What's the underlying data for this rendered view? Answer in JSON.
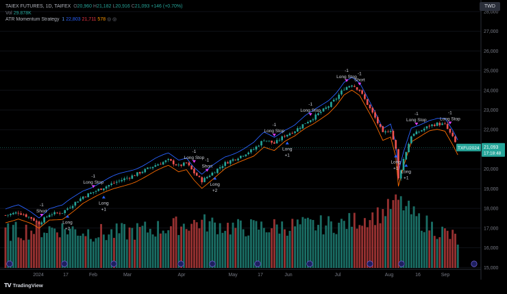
{
  "legend": {
    "symbol": "TAIEX FUTURES, 1D, TAIFEX",
    "open_label": "O",
    "open": "20,960",
    "high_label": "H",
    "high": "21,182",
    "low_label": "L",
    "low": "20,916",
    "close_label": "C",
    "close": "21,093",
    "change": "+146 (+0.70%)",
    "vol_label": "Vol",
    "vol": "29.878K",
    "indicator": "ATR Momentum Strategy",
    "ind_param": "1",
    "ind_upper": "22,803",
    "ind_lower": "21,711",
    "ind_count": "578",
    "icons": "◎ ◎"
  },
  "currency_button": "TWD",
  "price_tag": {
    "label": "TXFU2024",
    "price": "21,093",
    "countdown": "17:18:48"
  },
  "footer": {
    "brand": "TradingView"
  },
  "colors": {
    "up": "#26a69a",
    "down": "#ef5350",
    "upper_band": "#2962ff",
    "lower_band": "#ff6d00",
    "background": "#000000"
  },
  "chart_data": {
    "type": "candlestick",
    "y_axis_labels": [
      "28,000",
      "27,000",
      "26,000",
      "25,000",
      "24,000",
      "23,000",
      "22,000",
      "21,000",
      "20,000",
      "19,000",
      "18,000",
      "17,000",
      "16,000",
      "15,000"
    ],
    "y_axis_range": [
      14800,
      28100
    ],
    "x_axis_labels": [
      "2024",
      "17",
      "Feb",
      "Mar",
      "Apr",
      "May",
      "17",
      "Jun",
      "Jul",
      "Aug",
      "16",
      "Sep"
    ],
    "close_anchors": [
      [
        0,
        17650
      ],
      [
        5,
        17800
      ],
      [
        10,
        17500
      ],
      [
        13,
        17250
      ],
      [
        17,
        17700
      ],
      [
        22,
        17800
      ],
      [
        27,
        18300
      ],
      [
        30,
        18600
      ],
      [
        36,
        18950
      ],
      [
        42,
        19300
      ],
      [
        50,
        19700
      ],
      [
        58,
        20200
      ],
      [
        63,
        20450
      ],
      [
        67,
        20150
      ],
      [
        70,
        20300
      ],
      [
        73,
        19800
      ],
      [
        76,
        19400
      ],
      [
        80,
        19800
      ],
      [
        85,
        20300
      ],
      [
        90,
        20600
      ],
      [
        96,
        21000
      ],
      [
        100,
        21500
      ],
      [
        104,
        21300
      ],
      [
        108,
        21700
      ],
      [
        112,
        21950
      ],
      [
        116,
        22350
      ],
      [
        119,
        22600
      ],
      [
        121,
        22800
      ],
      [
        125,
        23200
      ],
      [
        128,
        23600
      ],
      [
        131,
        24100
      ],
      [
        134,
        24300
      ],
      [
        137,
        24000
      ],
      [
        140,
        23300
      ],
      [
        143,
        22600
      ],
      [
        146,
        21800
      ],
      [
        149,
        22000
      ],
      [
        151,
        21000
      ],
      [
        152,
        19500
      ],
      [
        154,
        20500
      ],
      [
        157,
        21700
      ],
      [
        160,
        21900
      ],
      [
        164,
        22200
      ],
      [
        167,
        22300
      ],
      [
        170,
        22250
      ],
      [
        173,
        21600
      ],
      [
        175,
        21093
      ]
    ],
    "volume_anchors": [
      [
        0,
        16.6
      ],
      [
        20,
        16.8
      ],
      [
        40,
        16.5
      ],
      [
        60,
        16.8
      ],
      [
        75,
        17.1
      ],
      [
        90,
        16.8
      ],
      [
        110,
        16.9
      ],
      [
        130,
        17.0
      ],
      [
        145,
        17.5
      ],
      [
        152,
        18.2
      ],
      [
        160,
        17.2
      ],
      [
        175,
        16.2
      ]
    ],
    "signals": [
      {
        "type": "short",
        "index": 14,
        "labels": [
          "-1",
          "Short"
        ]
      },
      {
        "type": "long",
        "index": 24,
        "labels": [
          "Long",
          "+2"
        ]
      },
      {
        "type": "long_stop",
        "index": 34,
        "labels": [
          "-1",
          "Long Stop"
        ]
      },
      {
        "type": "long",
        "index": 38,
        "labels": [
          "Long",
          "+1"
        ]
      },
      {
        "type": "long_stop",
        "index": 73,
        "labels": [
          "-1",
          "Long Stop"
        ]
      },
      {
        "type": "short",
        "index": 78,
        "labels": [
          "-1",
          "Short"
        ]
      },
      {
        "type": "long",
        "index": 81,
        "labels": [
          "Long",
          "+2"
        ]
      },
      {
        "type": "long_stop",
        "index": 104,
        "labels": [
          "-1",
          "Long Stop"
        ]
      },
      {
        "type": "long",
        "index": 109,
        "labels": [
          "Long",
          "+1"
        ]
      },
      {
        "type": "long_stop",
        "index": 118,
        "labels": [
          "-1",
          "Long Stop"
        ]
      },
      {
        "type": "long_stop",
        "index": 132,
        "labels": [
          "-1",
          "Long Stop"
        ]
      },
      {
        "type": "short",
        "index": 137,
        "labels": [
          "-1",
          "Short"
        ]
      },
      {
        "type": "long",
        "index": 151,
        "labels": [
          "Long",
          "+1"
        ]
      },
      {
        "type": "long",
        "index": 155,
        "labels": [
          "Long",
          "+1"
        ]
      },
      {
        "type": "long_stop",
        "index": 159,
        "labels": [
          "-1",
          "Long Stop"
        ]
      },
      {
        "type": "long_stop",
        "index": 172,
        "labels": [
          "-1",
          "Long Stop"
        ]
      }
    ],
    "grid": true,
    "legend_position": "top-left"
  }
}
